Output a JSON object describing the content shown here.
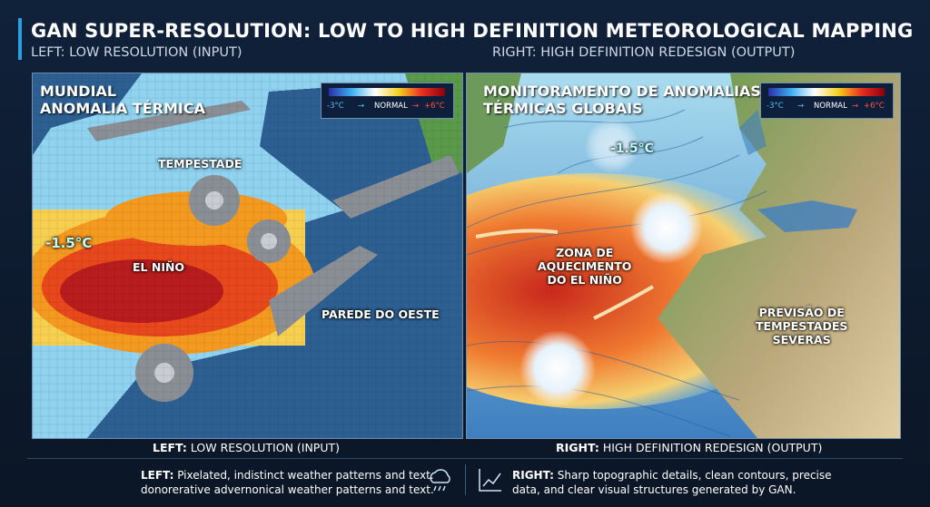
{
  "header": {
    "title": "GAN SUPER-RESOLUTION: LOW TO HIGH DEFINITION METEOROLOGICAL MAPPING",
    "left_subtitle": "LEFT: LOW RESOLUTION (INPUT)",
    "right_subtitle": "RIGHT: HIGH DEFINITION REDESIGN (OUTPUT)"
  },
  "left_panel": {
    "title_lines": [
      "MUNDIAL",
      "ANOMALIA TÉRMICA"
    ],
    "legend": {
      "min": "-3°C",
      "arrow_1": "→",
      "mid": "NORMAL",
      "arrow_2": "→",
      "max": "+6°C"
    },
    "labels": {
      "storm": "TEMPESTADE",
      "anomaly": "-1.5°C",
      "el_nino": "EL NIÑO",
      "west_wall": "PAREDE DO OESTE"
    }
  },
  "right_panel": {
    "title_lines": [
      "MONITORAMENTO DE ANOMALIAS",
      "TÉRMICAS GLOBAIS"
    ],
    "legend": {
      "min": "-3°C",
      "arrow_1": "→",
      "mid": "NORMAL",
      "arrow_2": "→",
      "max": "+6°C"
    },
    "labels": {
      "anomaly": "-1.5°C",
      "warming_zone": [
        "ZONA DE",
        "AQUECIMENTO",
        "DO EL NIÑO"
      ],
      "storm_forecast": [
        "PREVISÃO DE",
        "TEMPESTADES",
        "SEVERAS"
      ]
    }
  },
  "captions": {
    "left": {
      "prefix": "LEFT:",
      "text": "LOW RESOLUTION (INPUT)"
    },
    "right": {
      "prefix": "RIGHT:",
      "text": "HIGH DEFINITION REDESIGN (OUTPUT)"
    }
  },
  "descriptions": {
    "left": {
      "prefix": "LEFT:",
      "lines": [
        "Pixelated, indistinct weather patterns and text.",
        "donorerative advernonical weather patterns and text."
      ]
    },
    "right": {
      "prefix": "RIGHT:",
      "lines": [
        "Sharp topographic details, clean contours, precise",
        "data, and clear visual structures generated by GAN."
      ]
    }
  }
}
